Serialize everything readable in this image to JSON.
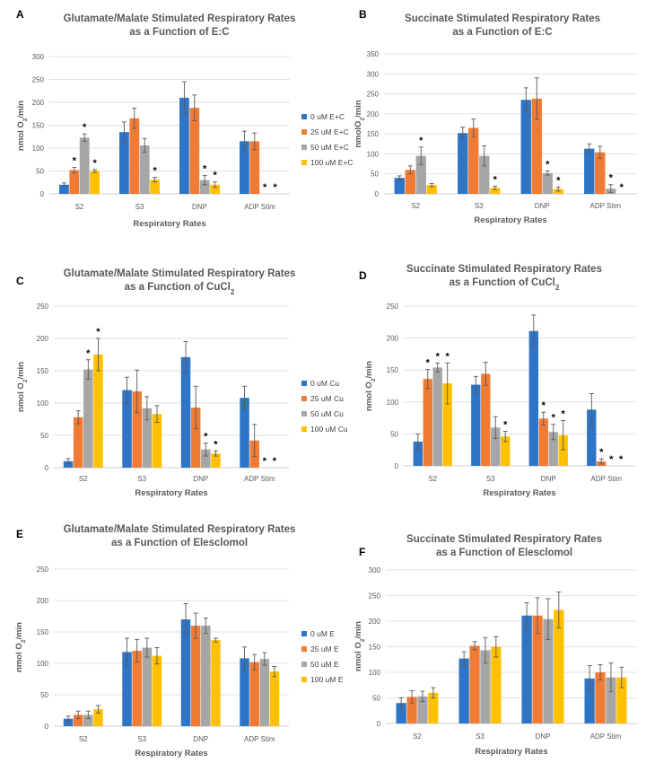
{
  "colors": {
    "blue": "#2E75C7",
    "orange": "#F07B34",
    "gray": "#A6A6A6",
    "yellow": "#FFC000",
    "grid": "#D9D9D9",
    "axis": "#BFBFBF",
    "error": "#595959"
  },
  "chart_data": [
    {
      "type": "bar",
      "panel_label": "A",
      "title": [
        "Glutamate/Malate Stimulated Respiratory Rates",
        "as a Function of E:C"
      ],
      "title_parts": [
        [
          {
            "t": "Glutamate/Malate Stimulated Respiratory Rates"
          }
        ],
        [
          {
            "t": "as a Function of E:C"
          }
        ]
      ],
      "xlabel": "Respiratory Rates",
      "ylabel_parts": [
        {
          "t": "nmol O"
        },
        {
          "t": "2",
          "sub": true
        },
        {
          "t": "/min"
        }
      ],
      "ylim": [
        0,
        300
      ],
      "yticks": [
        0,
        50,
        100,
        150,
        200,
        250,
        300
      ],
      "categories": [
        "S2",
        "S3",
        "DNP",
        "ADP Stim"
      ],
      "legend": true,
      "series": [
        {
          "name": "0 uM E+C",
          "color_key": "blue",
          "values": [
            20,
            135,
            210,
            115
          ],
          "errors": [
            4,
            22,
            35,
            22
          ]
        },
        {
          "name": "25 uM E+C",
          "color_key": "orange",
          "values": [
            52,
            165,
            188,
            115
          ],
          "errors": [
            6,
            22,
            28,
            18
          ]
        },
        {
          "name": "50 uM E+C",
          "color_key": "gray",
          "values": [
            123,
            106,
            30,
            0
          ],
          "errors": [
            8,
            15,
            10,
            0
          ]
        },
        {
          "name": "100 uM E+C",
          "color_key": "yellow",
          "values": [
            50,
            31,
            20,
            0
          ],
          "errors": [
            3,
            5,
            6,
            0
          ]
        }
      ],
      "significance": [
        [
          0,
          1
        ],
        [
          0,
          2
        ],
        [
          0,
          3
        ],
        [
          1,
          3
        ],
        [
          2,
          2
        ],
        [
          2,
          3
        ],
        [
          3,
          2
        ],
        [
          3,
          3
        ]
      ]
    },
    {
      "type": "bar",
      "panel_label": "B",
      "title": [
        "Succinate Stimulated Respiratory Rates",
        "as a Function of E:C"
      ],
      "title_parts": [
        [
          {
            "t": "Succinate Stimulated Respiratory Rates"
          }
        ],
        [
          {
            "t": "as a Function of E:C"
          }
        ]
      ],
      "xlabel": "Respiratory Rates",
      "ylabel_parts": [
        {
          "t": "nmolO"
        },
        {
          "t": "2",
          "sub": true
        },
        {
          "t": "/min"
        }
      ],
      "ylim": [
        0,
        350
      ],
      "yticks": [
        0,
        50,
        100,
        150,
        200,
        250,
        300,
        350
      ],
      "categories": [
        "S2",
        "S3",
        "DNP",
        "ADP Stim"
      ],
      "legend": false,
      "series": [
        {
          "name": "0 uM E+C",
          "color_key": "blue",
          "values": [
            40,
            152,
            235,
            113
          ],
          "errors": [
            5,
            15,
            30,
            12
          ]
        },
        {
          "name": "25 uM E+C",
          "color_key": "orange",
          "values": [
            60,
            165,
            238,
            104
          ],
          "errors": [
            10,
            22,
            52,
            15
          ]
        },
        {
          "name": "50 uM E+C",
          "color_key": "gray",
          "values": [
            95,
            95,
            52,
            13
          ],
          "errors": [
            22,
            25,
            5,
            10
          ]
        },
        {
          "name": "100 uM E+C",
          "color_key": "yellow",
          "values": [
            22,
            15,
            12,
            0
          ],
          "errors": [
            4,
            4,
            5,
            0
          ]
        }
      ],
      "significance": [
        [
          0,
          2
        ],
        [
          1,
          3
        ],
        [
          2,
          2
        ],
        [
          2,
          3
        ],
        [
          3,
          2
        ],
        [
          3,
          3
        ]
      ]
    },
    {
      "type": "bar",
      "panel_label": "C",
      "title": [
        "Glutamate/Malate Stimulated Respiratory Rates",
        "as a Function of CuCl2"
      ],
      "title_parts": [
        [
          {
            "t": "Glutamate/Malate Stimulated Respiratory Rates"
          }
        ],
        [
          {
            "t": "as a Function of CuCl"
          },
          {
            "t": "2",
            "sub": true
          }
        ]
      ],
      "xlabel": "Respiratory Rates",
      "ylabel_parts": [
        {
          "t": "nmol O"
        },
        {
          "t": "2",
          "sub": true
        },
        {
          "t": "/min"
        }
      ],
      "ylim": [
        0,
        250
      ],
      "yticks": [
        0,
        50,
        100,
        150,
        200,
        250
      ],
      "categories": [
        "S2",
        "S3",
        "DNP",
        "ADP Stim"
      ],
      "legend": true,
      "series": [
        {
          "name": "0 uM Cu",
          "color_key": "blue",
          "values": [
            10,
            120,
            171,
            108
          ],
          "errors": [
            4,
            20,
            24,
            18
          ]
        },
        {
          "name": "25 uM Cu",
          "color_key": "orange",
          "values": [
            78,
            118,
            93,
            42
          ],
          "errors": [
            10,
            33,
            33,
            25
          ]
        },
        {
          "name": "50 uM Cu",
          "color_key": "gray",
          "values": [
            152,
            92,
            28,
            0
          ],
          "errors": [
            15,
            18,
            10,
            0
          ]
        },
        {
          "name": "100 uM Cu",
          "color_key": "yellow",
          "values": [
            175,
            83,
            22,
            0
          ],
          "errors": [
            25,
            13,
            4,
            0
          ]
        }
      ],
      "significance": [
        [
          0,
          2
        ],
        [
          0,
          3
        ],
        [
          2,
          2
        ],
        [
          2,
          3
        ],
        [
          3,
          2
        ],
        [
          3,
          3
        ]
      ]
    },
    {
      "type": "bar",
      "panel_label": "D",
      "title": [
        "Succinate Stimulated Respiratory Rates",
        "as a Function of CuCl2"
      ],
      "title_parts": [
        [
          {
            "t": "Succinate Stimulated Respiratory Rates"
          }
        ],
        [
          {
            "t": "as a Function of CuCl"
          },
          {
            "t": "2",
            "sub": true
          }
        ]
      ],
      "xlabel": "Respiratory Rates",
      "ylabel_parts": [
        {
          "t": "nmol O"
        },
        {
          "t": "2",
          "sub": true
        },
        {
          "t": "/min"
        }
      ],
      "ylim": [
        0,
        250
      ],
      "yticks": [
        0,
        50,
        100,
        150,
        200,
        250
      ],
      "categories": [
        "S2",
        "S3",
        "DNP",
        "ADP Stim"
      ],
      "legend": false,
      "series": [
        {
          "name": "0 uM Cu",
          "color_key": "blue",
          "values": [
            38,
            127,
            211,
            88
          ],
          "errors": [
            12,
            13,
            25,
            25
          ]
        },
        {
          "name": "25 uM Cu",
          "color_key": "orange",
          "values": [
            136,
            144,
            74,
            7
          ],
          "errors": [
            15,
            18,
            10,
            4
          ]
        },
        {
          "name": "50 uM Cu",
          "color_key": "gray",
          "values": [
            154,
            60,
            53,
            0
          ],
          "errors": [
            7,
            17,
            12,
            0
          ]
        },
        {
          "name": "100 uM Cu",
          "color_key": "yellow",
          "values": [
            129,
            46,
            48,
            0
          ],
          "errors": [
            32,
            8,
            23,
            0
          ]
        }
      ],
      "significance": [
        [
          0,
          1
        ],
        [
          0,
          2
        ],
        [
          0,
          3
        ],
        [
          1,
          3
        ],
        [
          2,
          1
        ],
        [
          2,
          2
        ],
        [
          2,
          3
        ],
        [
          3,
          1
        ],
        [
          3,
          2
        ],
        [
          3,
          3
        ]
      ]
    },
    {
      "type": "bar",
      "panel_label": "E",
      "title": [
        "Glutamate/Malate Stimulated Respiratory Rates",
        "as a Function of Elesclomol"
      ],
      "title_parts": [
        [
          {
            "t": "Glutamate/Malate Stimulated Respiratory Rates"
          }
        ],
        [
          {
            "t": "as a Function of Elesclomol"
          }
        ]
      ],
      "xlabel": "Respiratory Rates",
      "ylabel_parts": [
        {
          "t": "nmol O"
        },
        {
          "t": "2",
          "sub": true
        },
        {
          "t": "/min"
        }
      ],
      "ylim": [
        0,
        250
      ],
      "yticks": [
        0,
        50,
        100,
        150,
        200,
        250
      ],
      "categories": [
        "S2",
        "S3",
        "DNP",
        "ADP Stim"
      ],
      "legend": true,
      "series": [
        {
          "name": "0 uM E",
          "color_key": "blue",
          "values": [
            12,
            118,
            170,
            108
          ],
          "errors": [
            4,
            22,
            25,
            18
          ]
        },
        {
          "name": "25 uM E",
          "color_key": "orange",
          "values": [
            18,
            120,
            160,
            102
          ],
          "errors": [
            6,
            18,
            20,
            12
          ]
        },
        {
          "name": "50 uM E",
          "color_key": "gray",
          "values": [
            18,
            125,
            160,
            107
          ],
          "errors": [
            6,
            15,
            12,
            10
          ]
        },
        {
          "name": "100 uM E",
          "color_key": "yellow",
          "values": [
            27,
            112,
            137,
            87
          ],
          "errors": [
            6,
            13,
            3,
            8
          ]
        }
      ],
      "significance": []
    },
    {
      "type": "bar",
      "panel_label": "F",
      "title": [
        "Succinate Stimulated Respiratory Rates",
        "as a Function of Elesclomol"
      ],
      "title_parts": [
        [
          {
            "t": "Succinate Stimulated Respiratory Rates"
          }
        ],
        [
          {
            "t": "as a Function of Elesclomol"
          }
        ]
      ],
      "xlabel": "Respiratory Rates",
      "ylabel_parts": [
        {
          "t": "nmol O"
        },
        {
          "t": "2",
          "sub": true
        },
        {
          "t": "/min"
        }
      ],
      "ylim": [
        0,
        300
      ],
      "yticks": [
        0,
        50,
        100,
        150,
        200,
        250,
        300
      ],
      "categories": [
        "S2",
        "S3",
        "DNP",
        "ADP Stim"
      ],
      "legend": false,
      "series": [
        {
          "name": "0 uM E",
          "color_key": "blue",
          "values": [
            40,
            127,
            211,
            88
          ],
          "errors": [
            10,
            13,
            25,
            25
          ]
        },
        {
          "name": "25 uM E",
          "color_key": "orange",
          "values": [
            52,
            152,
            211,
            100
          ],
          "errors": [
            12,
            8,
            35,
            15
          ]
        },
        {
          "name": "50 uM E",
          "color_key": "gray",
          "values": [
            53,
            143,
            204,
            90
          ],
          "errors": [
            10,
            25,
            40,
            28
          ]
        },
        {
          "name": "100 uM E",
          "color_key": "yellow",
          "values": [
            60,
            150,
            222,
            90
          ],
          "errors": [
            10,
            20,
            35,
            20
          ]
        }
      ],
      "significance": []
    }
  ]
}
